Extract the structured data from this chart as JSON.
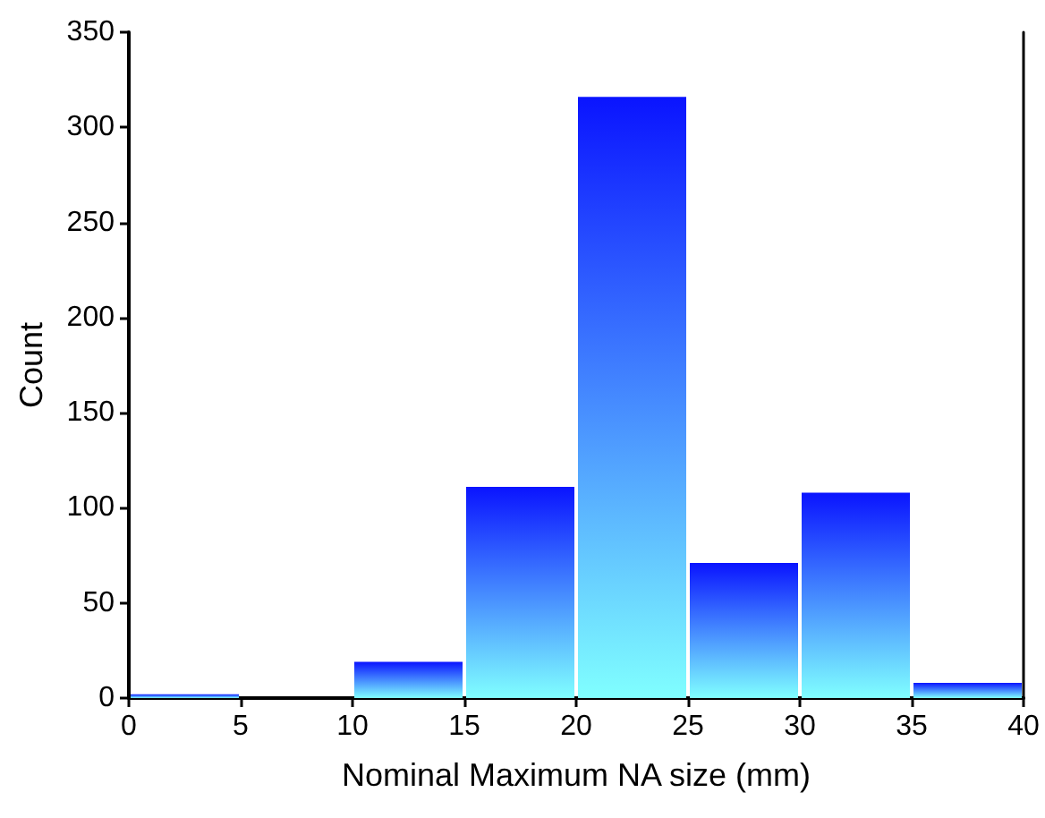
{
  "chart_data": {
    "type": "histogram",
    "xlabel": "Nominal Maximum NA size (mm)",
    "ylabel": "Count",
    "bins": [
      0,
      5,
      10,
      15,
      20,
      25,
      30,
      35,
      40
    ],
    "values": [
      2,
      0,
      19,
      111,
      316,
      71,
      108,
      8
    ],
    "color": "#0a14ff",
    "xlim": [
      0,
      40
    ],
    "xticks": [
      0,
      5,
      10,
      15,
      20,
      25,
      30,
      35,
      40
    ],
    "ylim": [
      0,
      350
    ],
    "yticks": [
      0,
      50,
      100,
      150,
      200,
      250,
      300,
      350
    ],
    "grid": false
  }
}
